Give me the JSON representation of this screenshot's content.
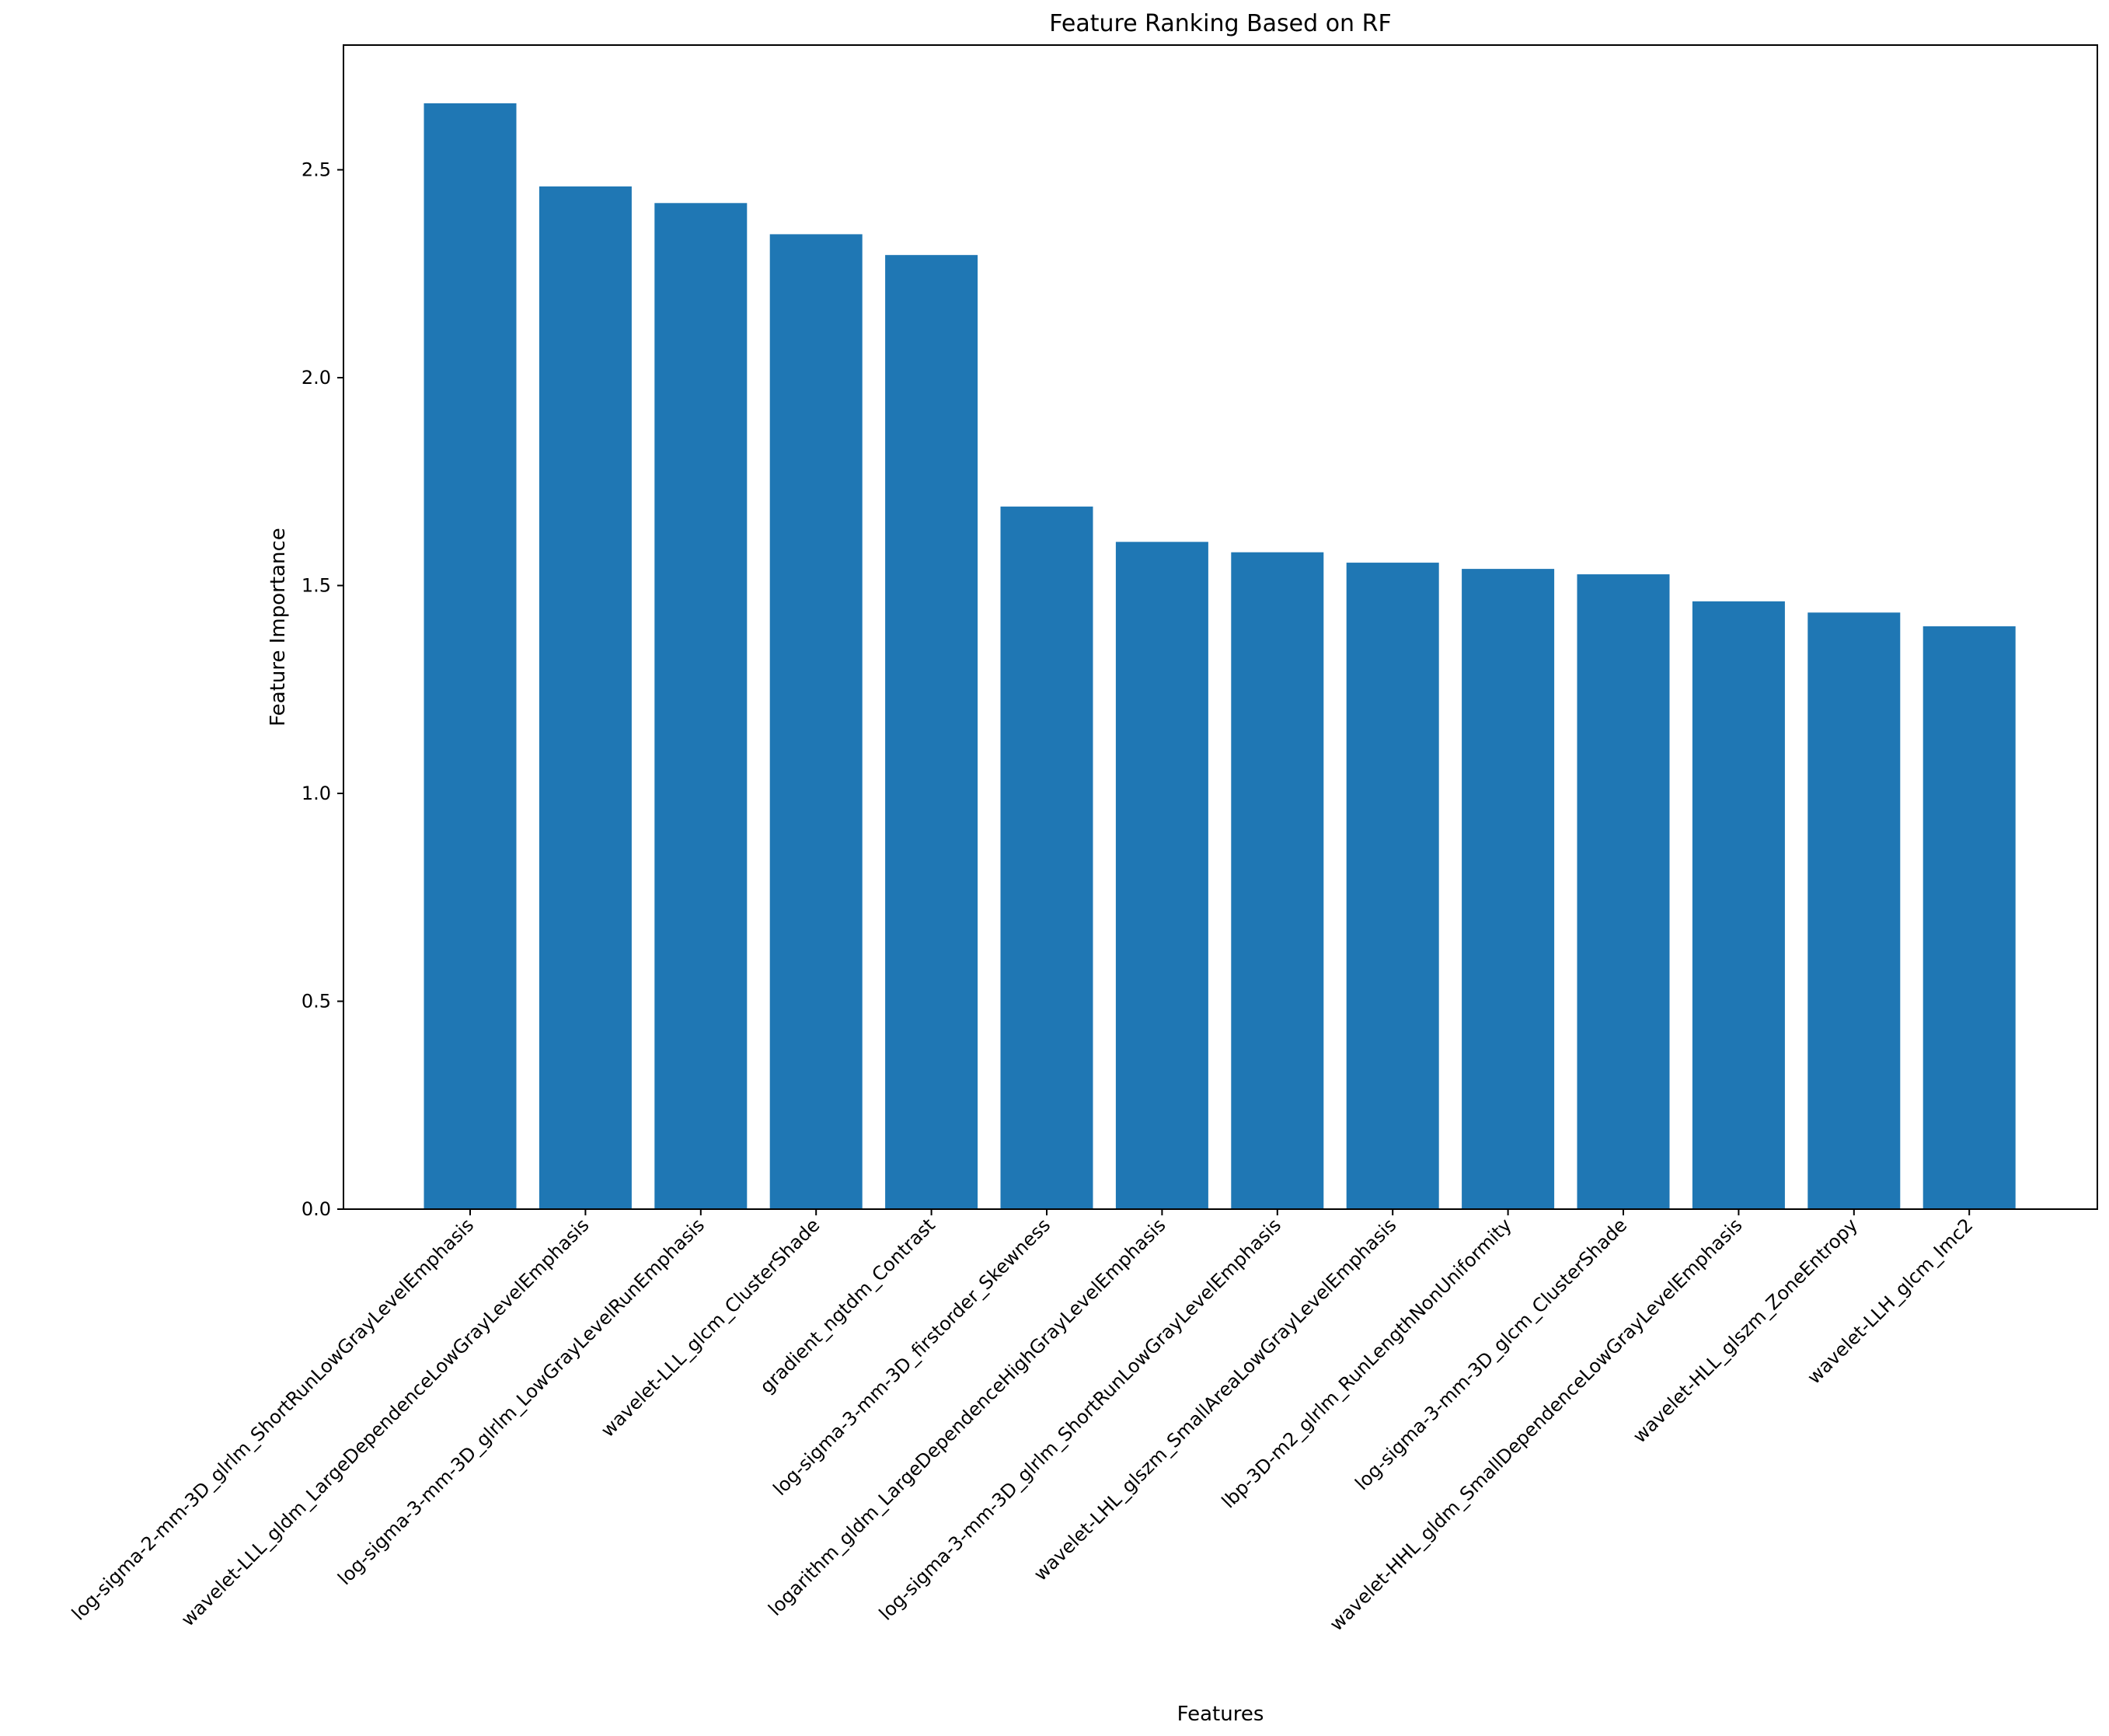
{
  "chart_data": {
    "type": "bar",
    "title": "Feature Ranking Based on RF",
    "xlabel": "Features",
    "ylabel": "Feature Importance",
    "ylim": [
      0,
      2.8
    ],
    "yticks": [
      0.0,
      0.5,
      1.0,
      1.5,
      2.0,
      2.5
    ],
    "ytick_labels": [
      "0.0",
      "0.5",
      "1.0",
      "1.5",
      "2.0",
      "2.5"
    ],
    "grid": false,
    "bar_color": "#1f77b4",
    "categories": [
      "log-sigma-2-mm-3D_glrlm_ShortRunLowGrayLevelEmphasis",
      "wavelet-LLL_gldm_LargeDependenceLowGrayLevelEmphasis",
      "log-sigma-3-mm-3D_glrlm_LowGrayLevelRunEmphasis",
      "wavelet-LLL_glcm_ClusterShade",
      "gradient_ngtdm_Contrast",
      "log-sigma-3-mm-3D_firstorder_Skewness",
      "logarithm_gldm_LargeDependenceHighGrayLevelEmphasis",
      "log-sigma-3-mm-3D_glrlm_ShortRunLowGrayLevelEmphasis",
      "wavelet-LHL_glszm_SmallAreaLowGrayLevelEmphasis",
      "lbp-3D-m2_glrlm_RunLengthNonUniformity",
      "log-sigma-3-mm-3D_glcm_ClusterShade",
      "wavelet-HHL_gldm_SmallDependenceLowGrayLevelEmphasis",
      "wavelet-HLL_glszm_ZoneEntropy",
      "wavelet-LLH_glcm_Imc2"
    ],
    "values": [
      2.66,
      2.46,
      2.42,
      2.345,
      2.295,
      1.69,
      1.605,
      1.58,
      1.555,
      1.54,
      1.527,
      1.462,
      1.435,
      1.402
    ]
  }
}
